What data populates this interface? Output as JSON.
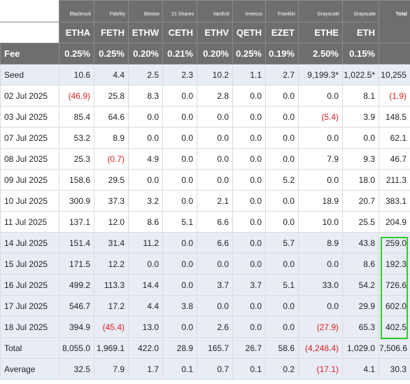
{
  "chart_data": {
    "type": "table",
    "issuers": [
      "Blackrock",
      "Fidelity",
      "Bitwise",
      "21 Shares",
      "VanEck",
      "Invesco",
      "Franklin",
      "Grayscale",
      "Grayscale"
    ],
    "tickers": [
      "ETHA",
      "FETH",
      "ETHW",
      "CETH",
      "ETHV",
      "QETH",
      "EZET",
      "ETHE",
      "ETH"
    ],
    "total_header": "Total",
    "fee_label": "Fee",
    "fees": [
      "0.25%",
      "0.25%",
      "0.20%",
      "0.21%",
      "0.20%",
      "0.25%",
      "0.19%",
      "2.50%",
      "0.15%"
    ],
    "rows": [
      {
        "label": "Seed",
        "cells": [
          "10.6",
          "4.4",
          "2.5",
          "2.3",
          "10.2",
          "1.1",
          "2.7",
          "9,199.3*",
          "1,022.5*",
          "10,255"
        ]
      },
      {
        "label": "02 Jul 2025",
        "cells": [
          "(46.9)",
          "25.8",
          "8.3",
          "0.0",
          "2.8",
          "0.0",
          "0.0",
          "0.0",
          "8.1",
          "(1.9)"
        ]
      },
      {
        "label": "03 Jul 2025",
        "cells": [
          "85.4",
          "64.6",
          "0.0",
          "0.0",
          "0.0",
          "0.0",
          "0.0",
          "(5.4)",
          "3.9",
          "148.5"
        ]
      },
      {
        "label": "07 Jul 2025",
        "cells": [
          "53.2",
          "8.9",
          "0.0",
          "0.0",
          "0.0",
          "0.0",
          "0.0",
          "0.0",
          "0.0",
          "62.1"
        ]
      },
      {
        "label": "08 Jul 2025",
        "cells": [
          "25.3",
          "(0.7)",
          "4.9",
          "0.0",
          "0.0",
          "0.0",
          "0.0",
          "7.9",
          "9.3",
          "46.7"
        ]
      },
      {
        "label": "09 Jul 2025",
        "cells": [
          "158.6",
          "29.5",
          "0.0",
          "0.0",
          "0.0",
          "0.0",
          "5.2",
          "0.0",
          "18.0",
          "211.3"
        ]
      },
      {
        "label": "10 Jul 2025",
        "cells": [
          "300.9",
          "37.3",
          "3.2",
          "0.0",
          "2.1",
          "0.0",
          "0.0",
          "18.9",
          "20.7",
          "383.1"
        ]
      },
      {
        "label": "11 Jul 2025",
        "cells": [
          "137.1",
          "12.0",
          "8.6",
          "5.1",
          "6.6",
          "0.0",
          "0.0",
          "10.0",
          "25.5",
          "204.9"
        ]
      },
      {
        "label": "14 Jul 2025",
        "cells": [
          "151.4",
          "31.4",
          "11.2",
          "0.0",
          "6.6",
          "0.0",
          "5.7",
          "8.9",
          "43.8",
          "259.0"
        ]
      },
      {
        "label": "15 Jul 2025",
        "cells": [
          "171.5",
          "12.2",
          "0.0",
          "0.0",
          "0.0",
          "0.0",
          "0.0",
          "0.0",
          "8.6",
          "192.3"
        ]
      },
      {
        "label": "16 Jul 2025",
        "cells": [
          "499.2",
          "113.3",
          "14.4",
          "0.0",
          "3.7",
          "3.7",
          "5.1",
          "33.0",
          "54.2",
          "726.6"
        ]
      },
      {
        "label": "17 Jul 2025",
        "cells": [
          "546.7",
          "17.2",
          "4.4",
          "3.8",
          "0.0",
          "0.0",
          "0.0",
          "0.0",
          "29.9",
          "602.0"
        ]
      },
      {
        "label": "18 Jul 2025",
        "cells": [
          "394.9",
          "(45.4)",
          "13.0",
          "0.0",
          "2.6",
          "0.0",
          "0.0",
          "(27.9)",
          "65.3",
          "402.5"
        ]
      },
      {
        "label": "Total",
        "cells": [
          "8,055.0",
          "1,969.1",
          "422.0",
          "28.9",
          "165.7",
          "26.7",
          "58.6",
          "(4,248.4)",
          "1,029.0",
          "7,506.6"
        ]
      },
      {
        "label": "Average",
        "cells": [
          "32.5",
          "7.9",
          "1.7",
          "0.1",
          "0.7",
          "0.1",
          "0.2",
          "(17.1)",
          "4.1",
          "30.3"
        ]
      }
    ],
    "colors": {
      "header_bg": "#6e6e6e",
      "shade_bg": "#e8ecf5",
      "negative": "#d81f1f",
      "highlight_box": "#2ecc2e"
    }
  }
}
